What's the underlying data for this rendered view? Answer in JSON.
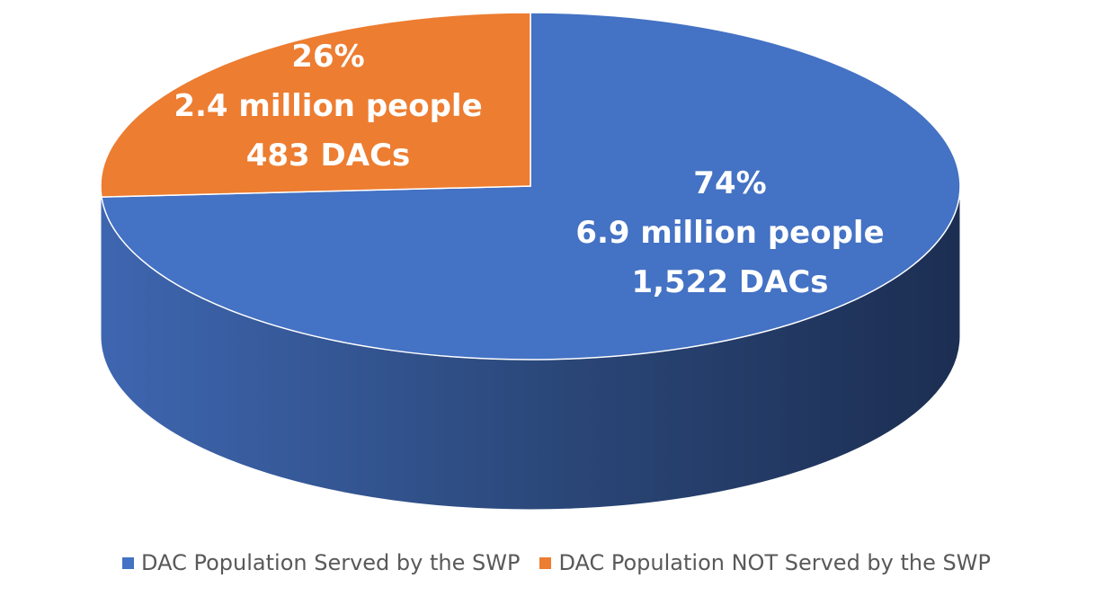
{
  "chart_data": {
    "type": "pie",
    "title": "",
    "style": "3d",
    "legend_position": "bottom",
    "slices": [
      {
        "name": "DAC Population Served by the SWP",
        "percent": 74,
        "color": "#4472C4",
        "label_lines": [
          "74%",
          "6.9 million people",
          "1,522 DACs"
        ]
      },
      {
        "name": "DAC Population NOT Served by the SWP",
        "percent": 26,
        "color": "#ED7D31",
        "label_lines": [
          "26%",
          "2.4 million people",
          "483 DACs"
        ]
      }
    ]
  }
}
